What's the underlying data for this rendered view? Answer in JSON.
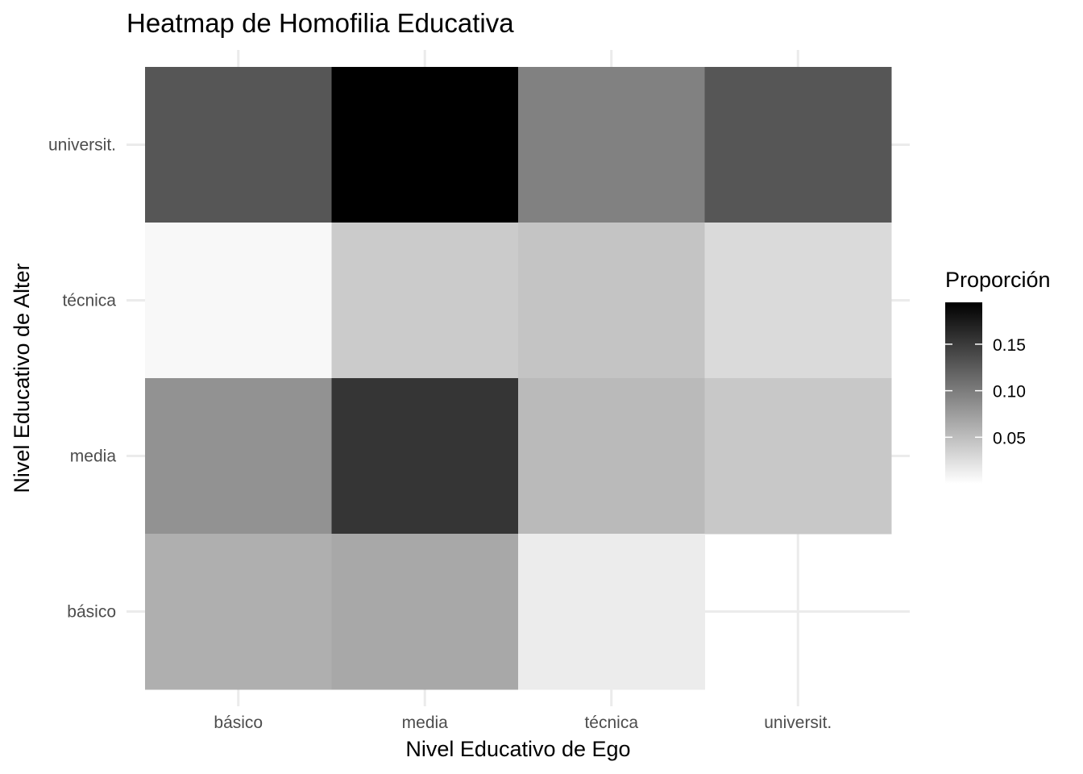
{
  "chart_data": {
    "type": "heatmap",
    "title": "Heatmap de Homofilia Educativa",
    "xlabel": "Nivel Educativo de Ego",
    "ylabel": "Nivel Educativo de Alter",
    "x_categories": [
      "básico",
      "media",
      "técnica",
      "universit."
    ],
    "y_categories": [
      "básico",
      "media",
      "técnica",
      "universit."
    ],
    "cells": [
      {
        "x": "básico",
        "y": "universit.",
        "value": 0.12
      },
      {
        "x": "media",
        "y": "universit.",
        "value": 0.195
      },
      {
        "x": "técnica",
        "y": "universit.",
        "value": 0.085
      },
      {
        "x": "universit.",
        "y": "universit.",
        "value": 0.12
      },
      {
        "x": "básico",
        "y": "técnica",
        "value": 0.003
      },
      {
        "x": "media",
        "y": "técnica",
        "value": 0.03
      },
      {
        "x": "técnica",
        "y": "técnica",
        "value": 0.035
      },
      {
        "x": "universit.",
        "y": "técnica",
        "value": 0.02
      },
      {
        "x": "básico",
        "y": "media",
        "value": 0.072
      },
      {
        "x": "media",
        "y": "media",
        "value": 0.148
      },
      {
        "x": "técnica",
        "y": "media",
        "value": 0.042
      },
      {
        "x": "universit.",
        "y": "media",
        "value": 0.032
      },
      {
        "x": "básico",
        "y": "básico",
        "value": 0.05
      },
      {
        "x": "media",
        "y": "básico",
        "value": 0.055
      },
      {
        "x": "técnica",
        "y": "básico",
        "value": 0.009
      }
    ],
    "legend": {
      "title": "Proporción",
      "placement": "right",
      "ticks": [
        0.05,
        0.1,
        0.15
      ],
      "tick_labels": [
        "0.05",
        "0.10",
        "0.15"
      ],
      "range": [
        0.0,
        0.195
      ],
      "low_color": "#ffffff",
      "high_color": "#000000"
    },
    "grid": true
  }
}
